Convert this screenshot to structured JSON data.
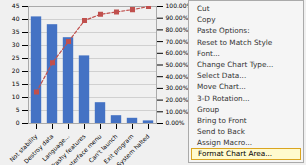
{
  "chart_data": {
    "type": "bar",
    "categories": [
      "Not stability",
      "Destroy data",
      "Language...",
      "Trashy features",
      "Interface menu",
      "Can't launch",
      "Exit program",
      "System halted"
    ],
    "series": [
      {
        "type": "bar",
        "color": "#4472C4",
        "values": [
          41,
          38,
          33,
          26,
          8,
          3,
          2,
          1
        ]
      },
      {
        "type": "line",
        "axis": "y2",
        "color": "#C0504D",
        "marker": "square",
        "line_style": "dashed",
        "values": [
          27.0,
          52.0,
          70.0,
          88.0,
          93.33,
          95.33,
          97.33,
          100.0
        ]
      }
    ],
    "ylim": [
      0,
      45
    ],
    "yticks": [
      0,
      5,
      10,
      15,
      20,
      25,
      30,
      35,
      40,
      45
    ],
    "y2lim": [
      0,
      100
    ],
    "y2ticks": [
      {
        "value": 0,
        "label": "0.00%"
      },
      {
        "value": 10,
        "label": "10.00%"
      },
      {
        "value": 20,
        "label": "20.00%"
      },
      {
        "value": 30,
        "label": "30.00%"
      },
      {
        "value": 40,
        "label": "40.00%"
      },
      {
        "value": 50,
        "label": "50.00%"
      },
      {
        "value": 60,
        "label": "60.00%"
      },
      {
        "value": 70,
        "label": "70.00%"
      },
      {
        "value": 80,
        "label": "80.00%"
      },
      {
        "value": 90,
        "label": "90.00%"
      },
      {
        "value": 100,
        "label": "100.00%"
      }
    ],
    "grid": true,
    "annotations": [
      "Cut",
      "Copy",
      "Paste Options:",
      "Reset to Match Style",
      "Font...",
      "Change Chart Type...",
      "Select Data...",
      "Move Chart...",
      "3-D Rotation...",
      "Group",
      "Bring to Front",
      "Send to Back",
      "Assign Macro...",
      "Format Chart Area..."
    ]
  }
}
